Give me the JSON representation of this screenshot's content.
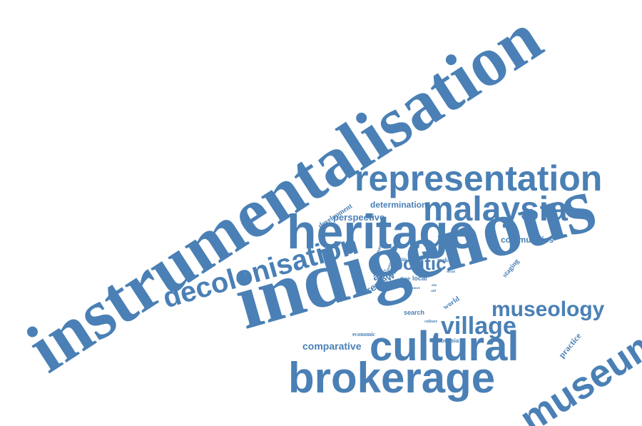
{
  "word_cloud": {
    "accent_color": "#4a80b5",
    "background_color": "#ffffff",
    "words": {
      "instrumentalisation": "instrumentalisation",
      "indigenous": "indigenous",
      "heritage": "heritage",
      "representation": "representation",
      "malaysia": "malaysia",
      "cultural": "cultural",
      "brokerage": "brokerage",
      "decolonisation": "decolonisation",
      "museum": "museum",
      "museology": "museology",
      "village": "village",
      "politic": "politic",
      "comparative": "comparative",
      "communities": "communities",
      "perspective": "perspective",
      "determination": "determination",
      "development": "development",
      "review": "review",
      "asia": "asia",
      "practice": "practice",
      "staging": "staging",
      "world": "world",
      "search": "search",
      "local": "local",
      "economic": "economic",
      "indonesia": "indonesia",
      "making": "making",
      "political": "political",
      "dynamic": "dynamic",
      "attempt": "attempt",
      "thesis": "thesis",
      "culture": "culture",
      "site": "site",
      "self": "self",
      "social": "social",
      "more": "more"
    }
  }
}
